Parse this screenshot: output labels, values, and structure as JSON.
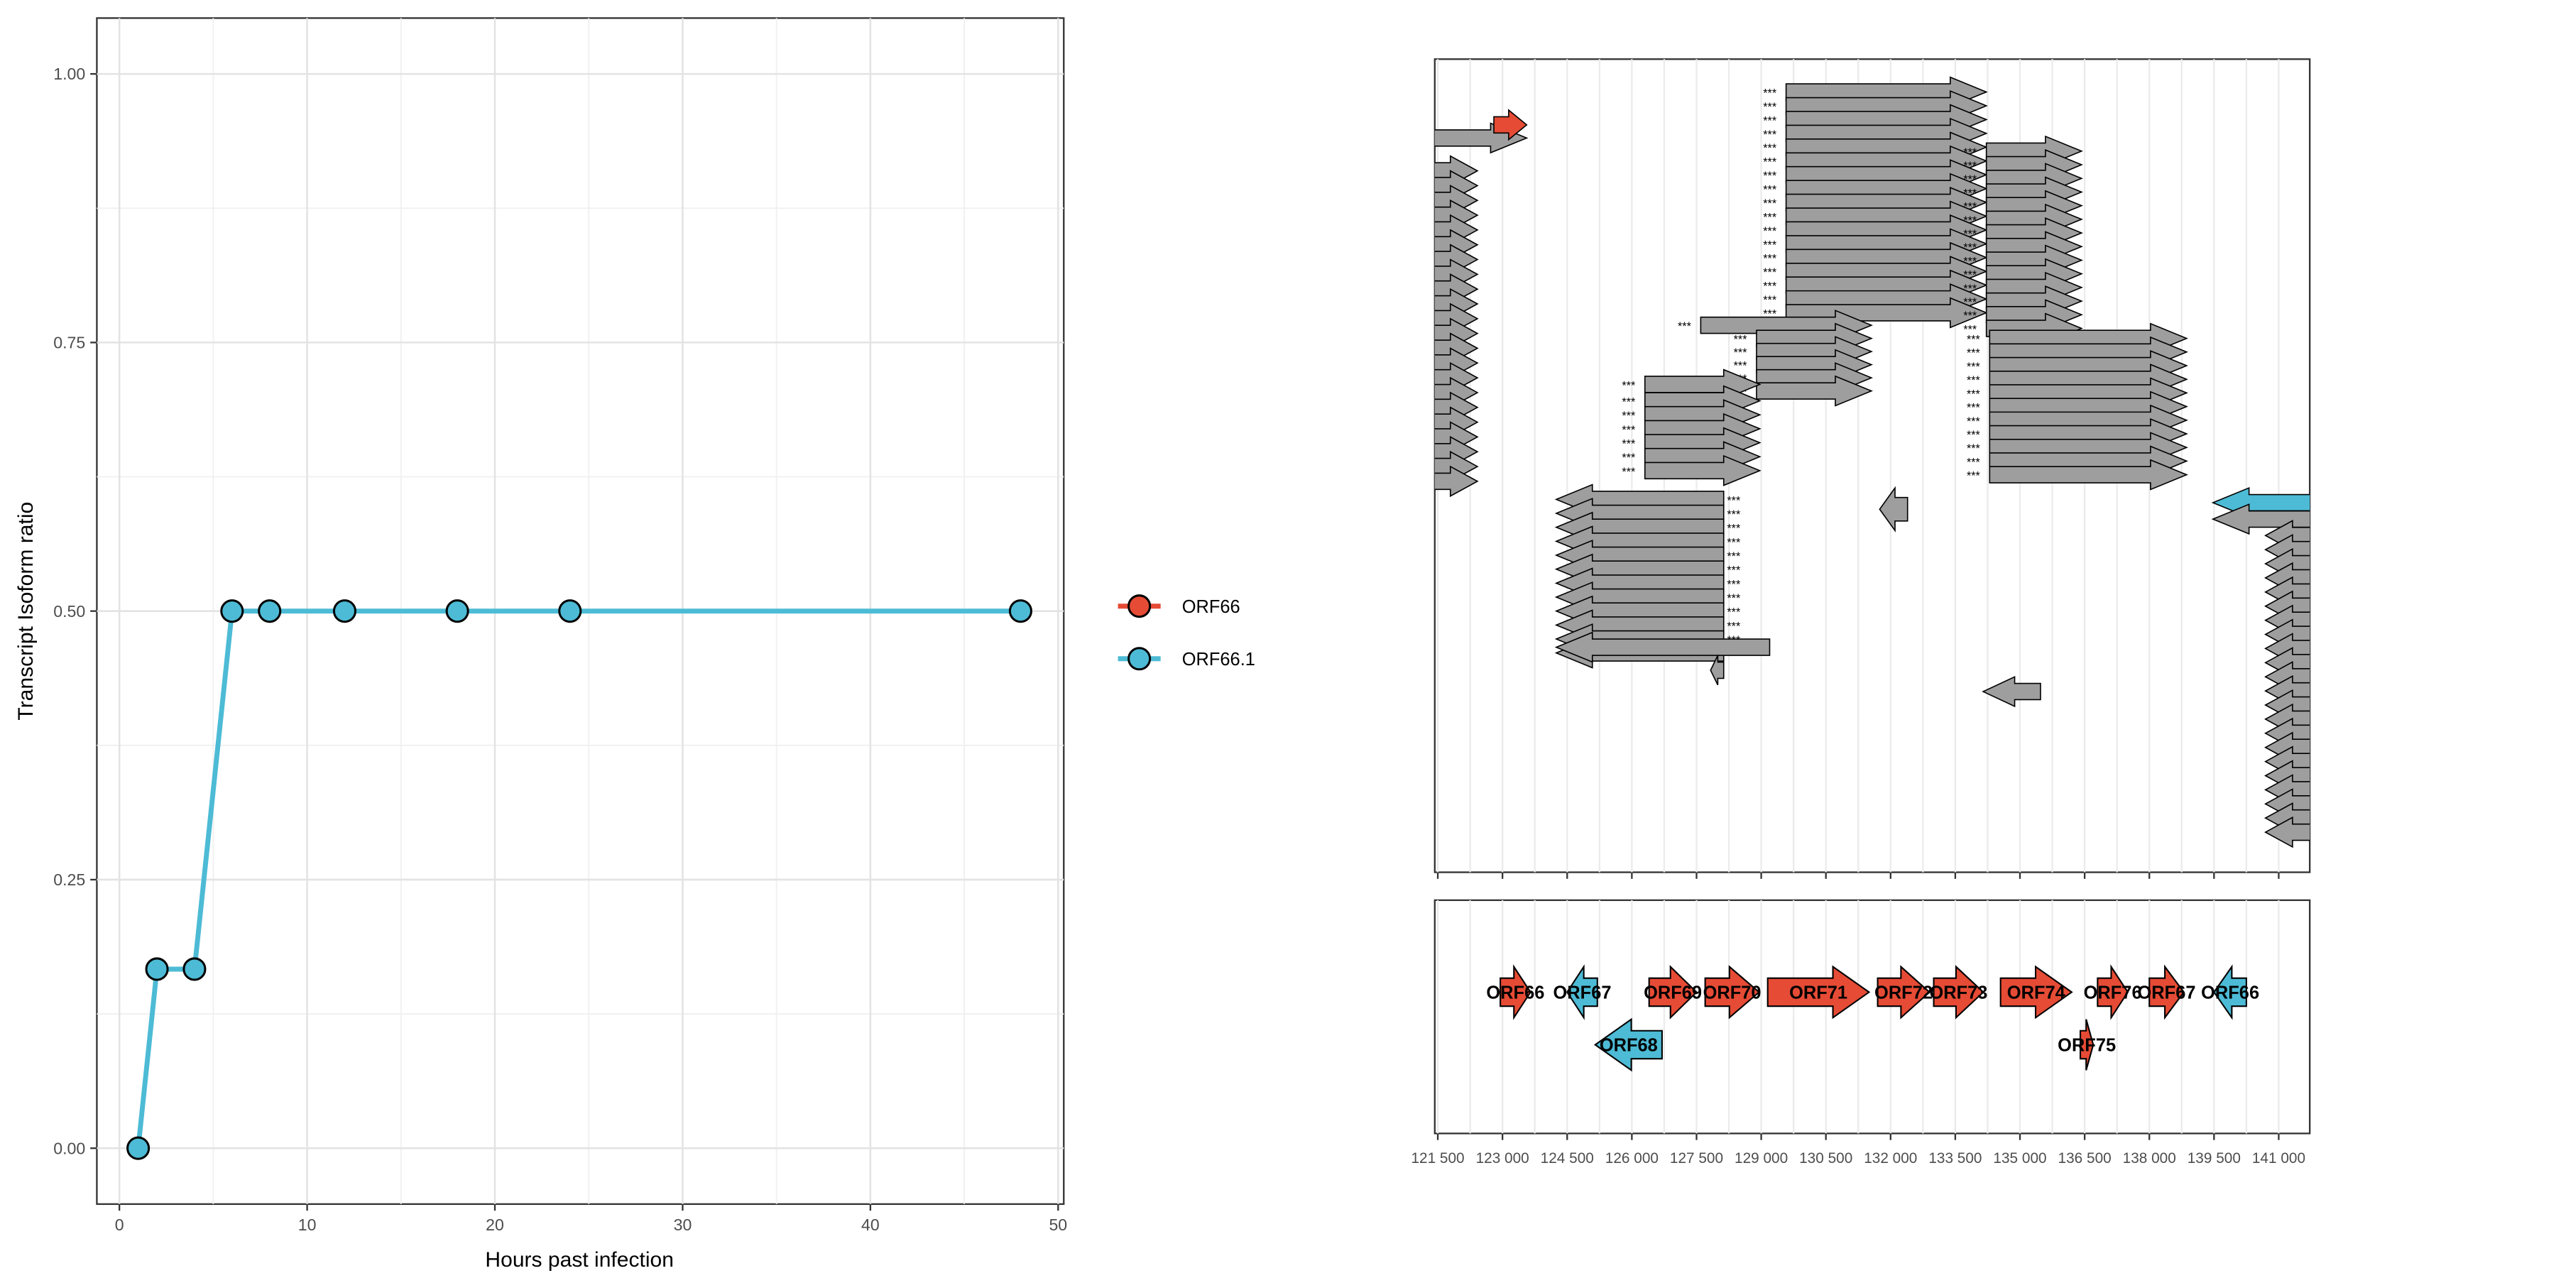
{
  "chart_data": [
    {
      "type": "line",
      "xlabel": "Hours past infection",
      "ylabel": "Transcript Isoform ratio",
      "xlim": [
        -1.2,
        50.3
      ],
      "ylim": [
        -0.052,
        1.052
      ],
      "x_ticks": [
        "0",
        "10",
        "20",
        "30",
        "40",
        "50"
      ],
      "x_tick_values": [
        0,
        10,
        20,
        30,
        40,
        50
      ],
      "y_ticks": [
        "0.00",
        "0.25",
        "0.50",
        "0.75",
        "1.00"
      ],
      "y_tick_values": [
        0,
        0.25,
        0.5,
        0.75,
        1.0
      ],
      "grid": true,
      "legend_position": "right",
      "series": [
        {
          "name": "ORF66",
          "color": "#E64B35",
          "x": [],
          "y": []
        },
        {
          "name": "ORF66.1",
          "color": "#4DBBD5",
          "x": [
            1,
            2,
            4,
            6,
            8,
            12,
            18,
            24,
            48
          ],
          "y": [
            0.0,
            0.1667,
            0.1667,
            0.5,
            0.5,
            0.5,
            0.5,
            0.5,
            0.5
          ]
        }
      ]
    },
    {
      "type": "gene-track",
      "x_tick_labels": [
        "121 500",
        "123 000",
        "124 500",
        "126 000",
        "127 500",
        "129 000",
        "130 500",
        "132 000",
        "133 500",
        "135 000",
        "136 500",
        "138 000",
        "139 500",
        "141 000"
      ],
      "x_tick_values": [
        121500,
        123000,
        124500,
        126000,
        127500,
        129000,
        130500,
        132000,
        133500,
        135000,
        136500,
        138000,
        139500,
        141000
      ],
      "xlim": [
        121430,
        141720
      ],
      "genes": [
        {
          "label": "ORF66",
          "start": 122950,
          "end": 123650,
          "strand": "+",
          "row": 0,
          "color": "#E64B35"
        },
        {
          "label": "ORF67",
          "start": 124500,
          "end": 125200,
          "strand": "-",
          "row": 0,
          "color": "#4DBBD5"
        },
        {
          "label": "ORF68",
          "start": 125150,
          "end": 126700,
          "strand": "-",
          "row": 1,
          "color": "#4DBBD5"
        },
        {
          "label": "ORF69",
          "start": 126400,
          "end": 127500,
          "strand": "+",
          "row": 0,
          "color": "#E64B35"
        },
        {
          "label": "ORF70",
          "start": 127700,
          "end": 128950,
          "strand": "+",
          "row": 0,
          "color": "#E64B35"
        },
        {
          "label": "ORF71",
          "start": 129150,
          "end": 131500,
          "strand": "+",
          "row": 0,
          "color": "#E64B35"
        },
        {
          "label": "ORF72",
          "start": 131700,
          "end": 132900,
          "strand": "+",
          "row": 0,
          "color": "#E64B35"
        },
        {
          "label": "ORF73",
          "start": 133000,
          "end": 134150,
          "strand": "+",
          "row": 0,
          "color": "#E64B35"
        },
        {
          "label": "ORF74",
          "start": 134550,
          "end": 136200,
          "strand": "+",
          "row": 0,
          "color": "#E64B35"
        },
        {
          "label": "ORF75",
          "start": 136400,
          "end": 136700,
          "strand": "+",
          "row": 1,
          "color": "#E64B35"
        },
        {
          "label": "ORF76",
          "start": 136800,
          "end": 137500,
          "strand": "+",
          "row": 0,
          "color": "#E64B35"
        },
        {
          "label": "ORF67",
          "start": 138000,
          "end": 138800,
          "strand": "+",
          "row": 0,
          "color": "#E64B35"
        },
        {
          "label": "ORF66",
          "start": 139500,
          "end": 140250,
          "strand": "-",
          "row": 0,
          "color": "#4DBBD5"
        }
      ]
    }
  ]
}
